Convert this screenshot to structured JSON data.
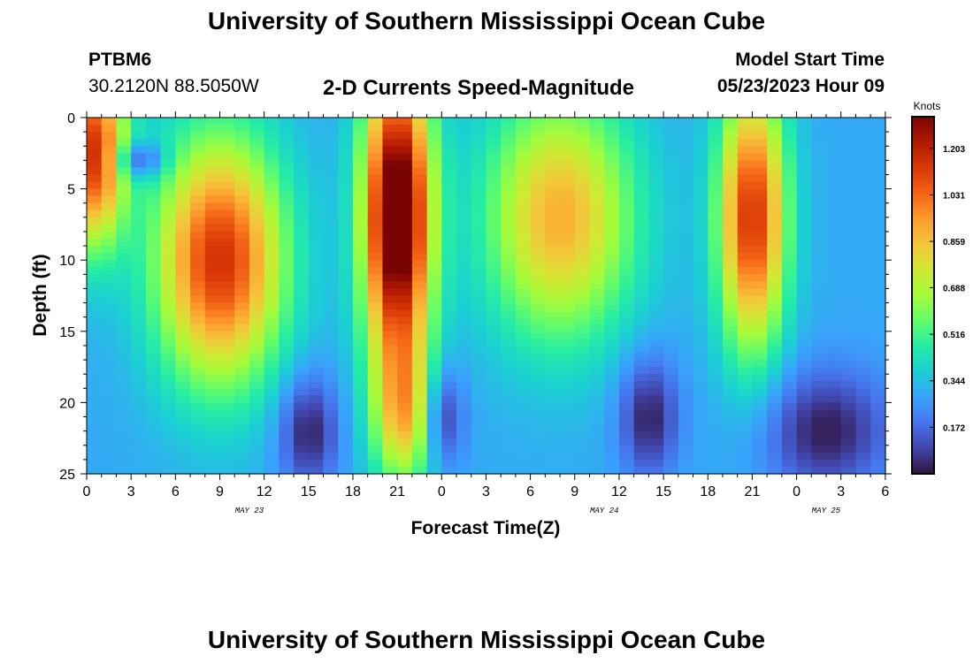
{
  "page": {
    "title": "University of Southern Mississippi Ocean Cube",
    "bottom_title": "University of Southern Mississippi Ocean Cube",
    "station_id": "PTBM6",
    "station_coords": "30.2120N  88.5050W",
    "plot_label": "2-D Currents Speed-Magnitude",
    "model_start_label": "Model Start Time",
    "model_start_value": "05/23/2023 Hour 09"
  },
  "colors": {
    "colormap": [
      "#30123b",
      "#4145ab",
      "#4675ed",
      "#39a2fc",
      "#1bcfd4",
      "#24eca6",
      "#61fc6c",
      "#a4fc3b",
      "#d1e834",
      "#f3c63a",
      "#fe9b2d",
      "#f36315",
      "#d93806",
      "#b11901",
      "#7a0403"
    ]
  },
  "chart_data": {
    "type": "heatmap",
    "title": "2-D Currents Speed-Magnitude",
    "xlabel": "Forecast Time(Z)",
    "ylabel": "Depth (ft)",
    "colorbar_label": "Knots",
    "x_hours_range": [
      0,
      54
    ],
    "x_tick_labels": [
      "0",
      "3",
      "6",
      "9",
      "12",
      "15",
      "18",
      "21",
      "0",
      "3",
      "6",
      "9",
      "12",
      "15",
      "18",
      "21",
      "0",
      "3",
      "6"
    ],
    "date_labels": [
      {
        "text": "MAY 23",
        "hour": 11
      },
      {
        "text": "MAY 24",
        "hour": 35
      },
      {
        "text": "MAY 25",
        "hour": 50
      }
    ],
    "y_ticks": [
      0,
      5,
      10,
      15,
      20,
      25
    ],
    "ylim": [
      0,
      25
    ],
    "y_inverted": true,
    "color_range": [
      0.0,
      1.32
    ],
    "colorbar_ticks": [
      "1.203",
      "1.031",
      "0.859",
      "0.688",
      "0.516",
      "0.344",
      "0.172"
    ],
    "colorbar_tick_values": [
      1.203,
      1.031,
      0.859,
      0.688,
      0.516,
      0.344,
      0.172
    ],
    "grid_columns": 54,
    "grid_rows": 50,
    "features": [
      {
        "name": "early-surface-jet",
        "t": 0.5,
        "d": 2.5,
        "st": 1.5,
        "sd": 4.5,
        "amp": 0.85
      },
      {
        "name": "first-core",
        "t": 9.0,
        "d": 10.0,
        "st": 3.0,
        "sd": 6.0,
        "amp": 0.85
      },
      {
        "name": "second-core",
        "t": 21.0,
        "d": 7.0,
        "st": 1.6,
        "sd": 7.5,
        "amp": 1.2
      },
      {
        "name": "lower-tail",
        "t": 21.5,
        "d": 21.0,
        "st": 1.5,
        "sd": 3.5,
        "amp": 0.45
      },
      {
        "name": "third-core",
        "t": 8.0,
        "d": 7.0,
        "st": 3.5,
        "sd": 6.0,
        "amp": 0.6,
        "day": 1
      },
      {
        "name": "fourth-core",
        "t": 21.0,
        "d": 7.0,
        "st": 1.6,
        "sd": 6.5,
        "amp": 0.85,
        "day": 1
      }
    ],
    "base_speed": 0.3
  }
}
